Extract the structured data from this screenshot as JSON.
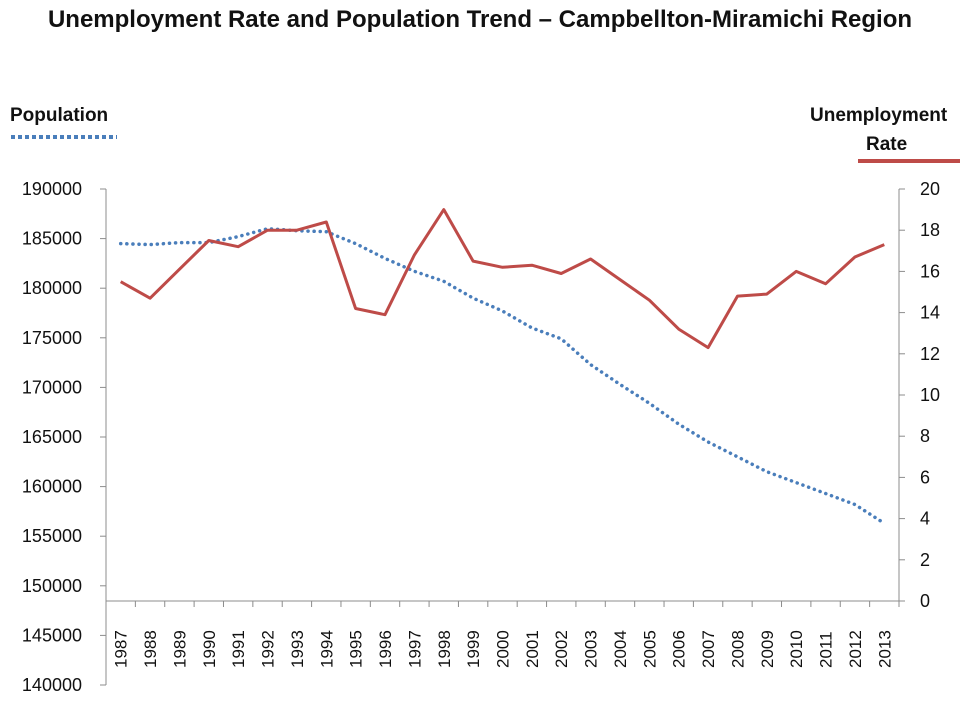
{
  "chart_data": {
    "type": "line",
    "title": "Unemployment Rate and Population Trend – Campbellton-Miramichi Region",
    "categories": [
      "1987",
      "1988",
      "1989",
      "1990",
      "1991",
      "1992",
      "1993",
      "1994",
      "1995",
      "1996",
      "1997",
      "1998",
      "1999",
      "2000",
      "2001",
      "2002",
      "2003",
      "2004",
      "2005",
      "2006",
      "2007",
      "2008",
      "2009",
      "2010",
      "2011",
      "2012",
      "2013"
    ],
    "series": [
      {
        "name": "Population",
        "axis": "left",
        "style": "dotted",
        "color": "#4a7ebb",
        "values": [
          184500,
          184400,
          184600,
          184600,
          185200,
          186000,
          185800,
          185700,
          184500,
          183000,
          181700,
          180700,
          179000,
          177700,
          176000,
          174900,
          172300,
          170300,
          168400,
          166300,
          164500,
          163000,
          161500,
          160400,
          159300,
          158200,
          156300
        ]
      },
      {
        "name": "Unemployment Rate",
        "axis": "right",
        "style": "solid",
        "color": "#be4b48",
        "values": [
          15.5,
          14.7,
          16.1,
          17.5,
          17.2,
          18.0,
          18.0,
          18.4,
          14.2,
          13.9,
          16.8,
          19.0,
          16.5,
          16.2,
          16.3,
          15.9,
          16.6,
          15.6,
          14.6,
          13.2,
          12.3,
          14.8,
          14.9,
          16.0,
          15.4,
          16.7,
          17.3
        ]
      }
    ],
    "y_left": {
      "label": "Population",
      "ylim": [
        140000,
        190000
      ],
      "ticks": [
        "190000",
        "185000",
        "180000",
        "175000",
        "170000",
        "165000",
        "160000",
        "155000",
        "150000",
        "145000",
        "140000"
      ]
    },
    "y_right": {
      "label_line1": "Unemployment",
      "label_line2": "Rate",
      "ylim": [
        0,
        20
      ],
      "ticks": [
        "20",
        "18",
        "16",
        "14",
        "12",
        "10",
        "8",
        "6",
        "4",
        "2",
        "0"
      ]
    },
    "grid": false,
    "legend": "axis-labels"
  }
}
